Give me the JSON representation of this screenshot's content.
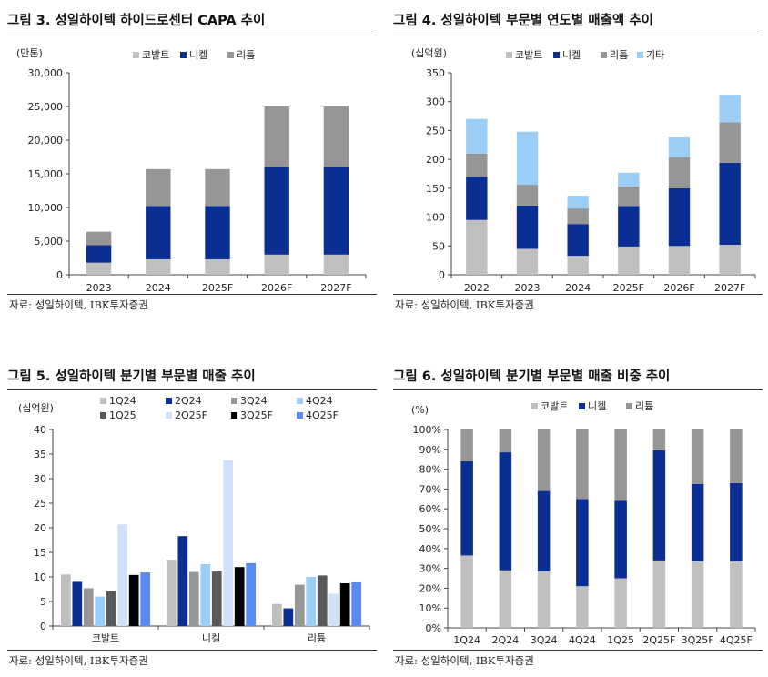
{
  "colors": {
    "cobalt": "#bfbfbf",
    "nickel": "#0a2e91",
    "lithium": "#969696",
    "other": "#9ccdf5"
  },
  "charts": [
    {
      "title": "그림 3. 성일하이텍 하이드로센터 CAPA 추이",
      "source": "자료: 성일하이텍, IBK투자증권",
      "chart_data": {
        "type": "bar",
        "stacked": true,
        "unit": "(만톤)",
        "categories": [
          "2023",
          "2024",
          "2025F",
          "2026F",
          "2027F"
        ],
        "series": [
          {
            "name": "코발트",
            "color": "#bfbfbf",
            "values": [
              1800,
              2300,
              2300,
              3000,
              3000
            ]
          },
          {
            "name": "니켈",
            "color": "#0a2e91",
            "values": [
              2600,
              7900,
              7900,
              13000,
              13000
            ]
          },
          {
            "name": "리튬",
            "color": "#969696",
            "values": [
              2000,
              5500,
              5500,
              9000,
              9000
            ]
          }
        ],
        "ylim": [
          0,
          30000
        ],
        "yticks": [
          "0",
          "5,000",
          "10,000",
          "15,000",
          "20,000",
          "25,000",
          "30,000"
        ],
        "legend": "top"
      }
    },
    {
      "title": "그림 4. 성일하이텍 부문별 연도별 매출액 추이",
      "source": "자료: 성일하이텍, IBK투자증권",
      "chart_data": {
        "type": "bar",
        "stacked": true,
        "unit": "(십억원)",
        "categories": [
          "2022",
          "2023",
          "2024",
          "2025F",
          "2026F",
          "2027F"
        ],
        "series": [
          {
            "name": "코발트",
            "color": "#bfbfbf",
            "values": [
              95,
              45,
              33,
              49,
              50,
              52
            ]
          },
          {
            "name": "니켈",
            "color": "#0a2e91",
            "values": [
              75,
              75,
              55,
              70,
              100,
              142
            ]
          },
          {
            "name": "리튬",
            "color": "#969696",
            "values": [
              40,
              36,
              27,
              34,
              54,
              70
            ]
          },
          {
            "name": "기타",
            "color": "#9ccdf5",
            "values": [
              60,
              92,
              22,
              24,
              34,
              48
            ]
          }
        ],
        "ylim": [
          0,
          350
        ],
        "yticks": [
          "0",
          "50",
          "100",
          "150",
          "200",
          "250",
          "300",
          "350"
        ],
        "legend": "top"
      }
    },
    {
      "title": "그림 5. 성일하이텍 분기별 부문별 매출 추이",
      "source": "자료: 성일하이텍, IBK투자증권",
      "chart_data": {
        "type": "bar",
        "stacked": false,
        "unit": "(십억원)",
        "categories": [
          "코발트",
          "니켈",
          "리튬"
        ],
        "series": [
          {
            "name": "1Q24",
            "color": "#bfbfbf",
            "values": [
              10.5,
              13.5,
              4.5
            ]
          },
          {
            "name": "2Q24",
            "color": "#0a2e91",
            "values": [
              9.0,
              18.3,
              3.6
            ]
          },
          {
            "name": "3Q24",
            "color": "#969696",
            "values": [
              7.7,
              11.0,
              8.4
            ]
          },
          {
            "name": "4Q24",
            "color": "#9ccdf5",
            "values": [
              6.0,
              12.6,
              10.0
            ]
          },
          {
            "name": "1Q25",
            "color": "#595959",
            "values": [
              7.1,
              11.1,
              10.3
            ]
          },
          {
            "name": "2Q25F",
            "color": "#cfe1fa",
            "values": [
              20.7,
              33.7,
              6.6
            ]
          },
          {
            "name": "3Q25F",
            "color": "#000000",
            "values": [
              10.4,
              12.0,
              8.7
            ]
          },
          {
            "name": "4Q25F",
            "color": "#5a8bf0",
            "values": [
              10.9,
              12.8,
              8.9
            ]
          }
        ],
        "ylim": [
          0,
          40
        ],
        "yticks": [
          "0",
          "5",
          "10",
          "15",
          "20",
          "25",
          "30",
          "35",
          "40"
        ],
        "legend": "top"
      }
    },
    {
      "title": "그림 6. 성일하이텍 분기별 부문별 매출 비중 추이",
      "source": "자료: 성일하이텍, IBK투자증권",
      "chart_data": {
        "type": "bar",
        "stacked": true,
        "unit": "(%)",
        "categories": [
          "1Q24",
          "2Q24",
          "3Q24",
          "4Q24",
          "1Q25",
          "2Q25F",
          "3Q25F",
          "4Q25F"
        ],
        "series": [
          {
            "name": "코발트",
            "color": "#bfbfbf",
            "values": [
              36.5,
              29,
              28.5,
              21,
              25,
              34,
              33.5,
              33.5
            ]
          },
          {
            "name": "니켈",
            "color": "#0a2e91",
            "values": [
              47.5,
              59.5,
              40.5,
              44,
              39,
              55.5,
              39,
              39.5
            ]
          },
          {
            "name": "리튬",
            "color": "#969696",
            "values": [
              16,
              11.5,
              31,
              35,
              36,
              10.5,
              27.5,
              27
            ]
          }
        ],
        "ylim": [
          0,
          100
        ],
        "yticks": [
          "0%",
          "10%",
          "20%",
          "30%",
          "40%",
          "50%",
          "60%",
          "70%",
          "80%",
          "90%",
          "100%"
        ],
        "legend": "top"
      }
    }
  ]
}
